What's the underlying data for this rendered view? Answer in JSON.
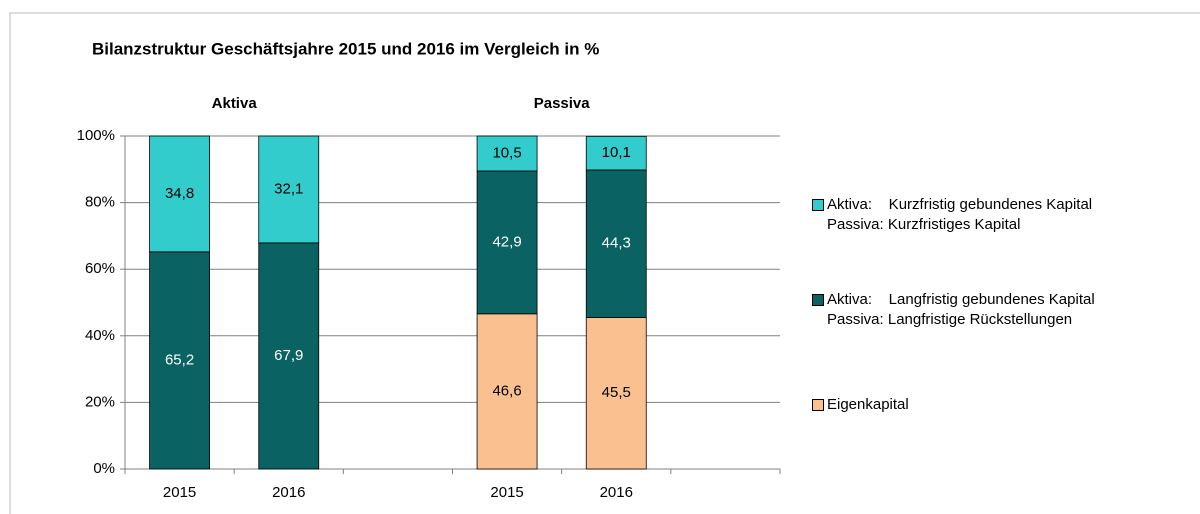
{
  "chart_data": {
    "type": "stacked_bar",
    "title": "Bilanzstruktur Geschäftsjahre 2015 und 2016 im Vergleich in %",
    "group_labels": [
      "Aktiva",
      "Passiva"
    ],
    "categories": [
      "2015",
      "2016",
      null,
      "2015",
      "2016",
      null
    ],
    "series": [
      {
        "name": "Eigenkapital",
        "color": "#fac090",
        "values": [
          null,
          null,
          null,
          46.6,
          45.5,
          null
        ],
        "value_labels": [
          null,
          null,
          null,
          "46,6",
          "45,5",
          null
        ]
      },
      {
        "name": "Aktiva:    Langfristig gebundenes Kapital\nPassiva: Langfristige Rückstellungen",
        "color": "#0b6262",
        "values": [
          65.2,
          67.9,
          null,
          42.9,
          44.3,
          null
        ],
        "value_labels": [
          "65,2",
          "67,9",
          null,
          "42,9",
          "44,3",
          null
        ]
      },
      {
        "name": "Aktiva:    Kurzfristig gebundenes Kapital\nPassiva: Kurzfristiges Kapital",
        "color": "#33cccc",
        "values": [
          34.8,
          32.1,
          null,
          10.5,
          10.1,
          null
        ],
        "value_labels": [
          "34,8",
          "32,1",
          null,
          "10,5",
          "10,1",
          null
        ]
      }
    ],
    "ylim": [
      0,
      100
    ],
    "yticks": [
      {
        "value": 0,
        "label": "0%"
      },
      {
        "value": 20,
        "label": "20%"
      },
      {
        "value": 40,
        "label": "40%"
      },
      {
        "value": 60,
        "label": "60%"
      },
      {
        "value": 80,
        "label": "80%"
      },
      {
        "value": 100,
        "label": "100%"
      }
    ],
    "grid": true
  }
}
